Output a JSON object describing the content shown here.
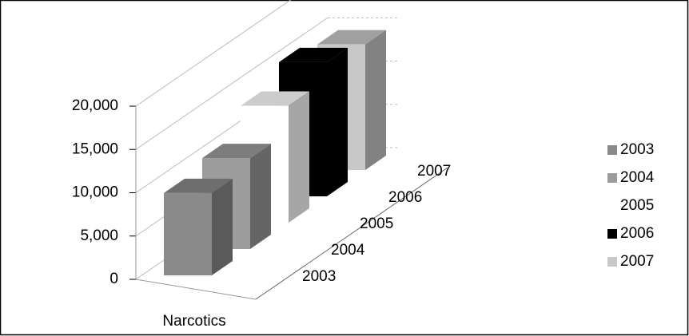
{
  "chart_data": {
    "type": "bar3d",
    "categories": [
      "Narcotics"
    ],
    "series": [
      {
        "name": "2003",
        "color": "#8a8a8a",
        "values": [
          9500
        ]
      },
      {
        "name": "2004",
        "color": "#9c9c9c",
        "values": [
          10500
        ]
      },
      {
        "name": "2005",
        "color": "#ffffff",
        "values": [
          13500
        ]
      },
      {
        "name": "2006",
        "color": "#000000",
        "values": [
          15500
        ]
      },
      {
        "name": "2007",
        "color": "#c8c8c8",
        "values": [
          14500
        ]
      }
    ],
    "ylim": [
      0,
      20000
    ],
    "yticks": [
      {
        "value": 0,
        "label": "0"
      },
      {
        "value": 5000,
        "label": "5,000"
      },
      {
        "value": 10000,
        "label": "10,000"
      },
      {
        "value": 15000,
        "label": "15,000"
      },
      {
        "value": 20000,
        "label": "20,000"
      }
    ],
    "grid": true,
    "legend": "right"
  }
}
